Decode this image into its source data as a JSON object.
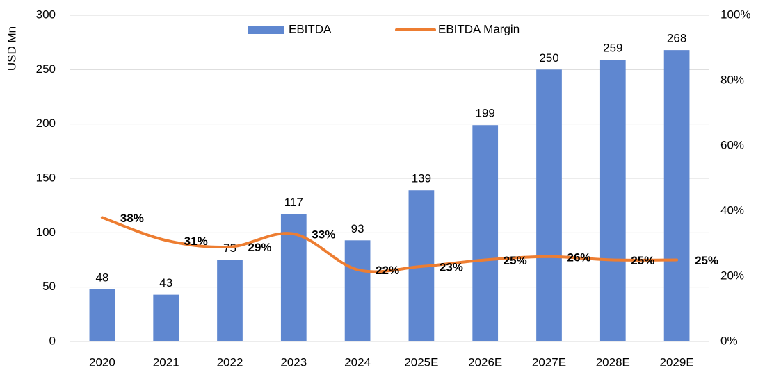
{
  "chart_data": {
    "type": "combo",
    "y_label": "USD Mn",
    "categories": [
      "2020",
      "2021",
      "2022",
      "2023",
      "2024",
      "2025E",
      "2026E",
      "2027E",
      "2028E",
      "2029E"
    ],
    "series": [
      {
        "name": "EBITDA",
        "type": "bar",
        "color": "#5f87d0",
        "values": [
          48,
          43,
          75,
          117,
          93,
          139,
          199,
          250,
          259,
          268
        ]
      },
      {
        "name": "EBITDA Margin",
        "type": "line",
        "axis": "y2",
        "color": "#ed7d31",
        "smooth": true,
        "values": [
          38,
          31,
          29,
          33,
          22,
          23,
          25,
          26,
          25,
          25
        ],
        "value_labels": [
          "38%",
          "31%",
          "29%",
          "33%",
          "22%",
          "23%",
          "25%",
          "26%",
          "25%",
          "25%"
        ]
      }
    ],
    "ylim": [
      0,
      300
    ],
    "yticks": [
      0,
      50,
      100,
      150,
      200,
      250,
      300
    ],
    "y2lim": [
      0,
      100
    ],
    "y2ticks": [
      {
        "value": 0,
        "label": "0%"
      },
      {
        "value": 20,
        "label": "20%"
      },
      {
        "value": 40,
        "label": "40%"
      },
      {
        "value": 60,
        "label": "60%"
      },
      {
        "value": 80,
        "label": "80%"
      },
      {
        "value": 100,
        "label": "100%"
      }
    ],
    "grid": true,
    "legend": "top"
  }
}
